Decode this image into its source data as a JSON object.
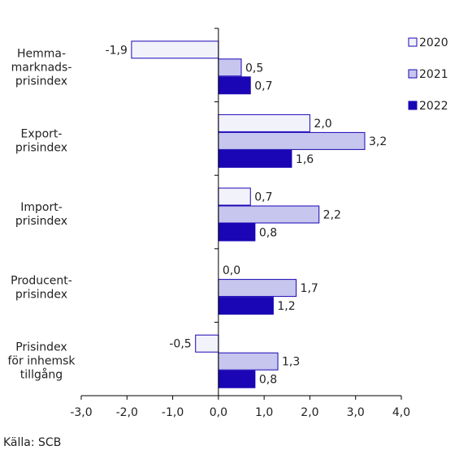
{
  "chart_data": {
    "type": "bar",
    "orientation": "horizontal",
    "categories": [
      "Hemma-\nmarknads-\nprisindex",
      "Export-\nprisindex",
      "Import-\nprisindex",
      "Producent-\nprisindex",
      "Prisindex\nför inhemsk\ntillgång"
    ],
    "series": [
      {
        "name": "2020",
        "values": [
          -1.9,
          2.0,
          0.7,
          0.0,
          -0.5
        ],
        "labels": [
          "-1,9",
          "2,0",
          "0,7",
          "0,0",
          "-0,5"
        ],
        "color": "#f2f2fb"
      },
      {
        "name": "2021",
        "values": [
          0.5,
          3.2,
          2.2,
          1.7,
          1.3
        ],
        "labels": [
          "0,5",
          "3,2",
          "2,2",
          "1,7",
          "1,3"
        ],
        "color": "#c6c6ee"
      },
      {
        "name": "2022",
        "values": [
          0.7,
          1.6,
          0.8,
          1.2,
          0.8
        ],
        "labels": [
          "0,7",
          "1,6",
          "0,8",
          "1,2",
          "0,8"
        ],
        "color": "#1a06b4"
      }
    ],
    "xlim": [
      -3.0,
      4.0
    ],
    "xticks": [
      -3.0,
      -2.0,
      -1.0,
      0.0,
      1.0,
      2.0,
      3.0,
      4.0
    ],
    "xtick_labels": [
      "-3,0",
      "-2,0",
      "-1,0",
      "0,0",
      "1,0",
      "2,0",
      "3,0",
      "4,0"
    ],
    "grid": false,
    "legend_position": "right",
    "bar_edge_color": "#1a06b4"
  },
  "source_text": "Källa: SCB"
}
